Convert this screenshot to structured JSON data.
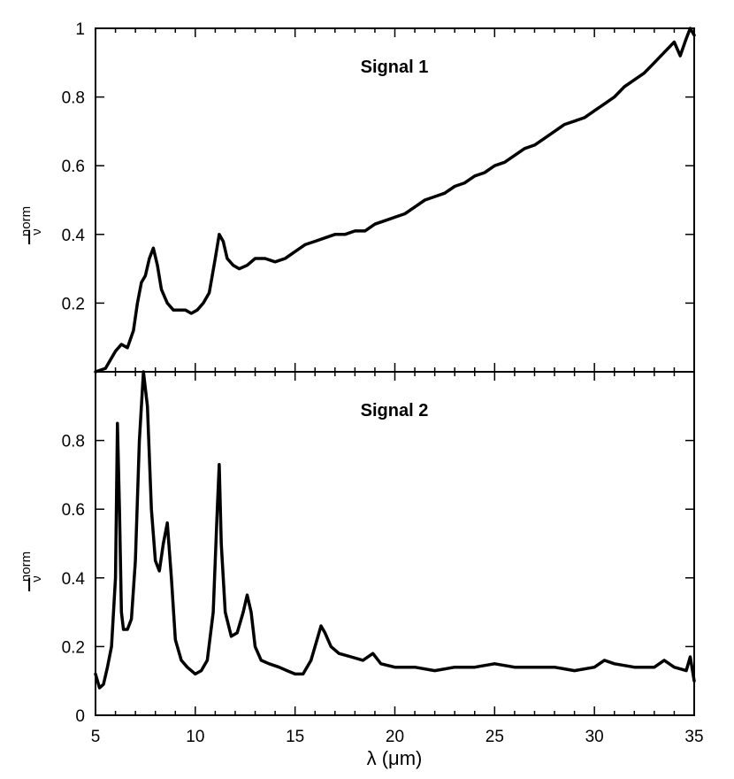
{
  "chart_data": [
    {
      "type": "line",
      "title": "Signal 1",
      "xlabel": "",
      "ylabel_main": "I",
      "ylabel_sup": "norm",
      "ylabel_sub": "ν",
      "xlim": [
        5,
        35
      ],
      "ylim": [
        0,
        1
      ],
      "yticks": [
        0.2,
        0.4,
        0.6,
        0.8,
        1
      ],
      "ytick_labels": [
        "0.2",
        "0.4",
        "0.6",
        "0.8",
        "1"
      ],
      "series": [
        {
          "x": [
            5.0,
            5.5,
            6.0,
            6.3,
            6.6,
            6.9,
            7.1,
            7.3,
            7.5,
            7.7,
            7.9,
            8.1,
            8.3,
            8.6,
            8.9,
            9.2,
            9.5,
            9.8,
            10.1,
            10.4,
            10.7,
            11.0,
            11.2,
            11.4,
            11.6,
            11.9,
            12.2,
            12.6,
            13.0,
            13.5,
            14.0,
            14.5,
            15.0,
            15.5,
            16.0,
            16.5,
            17.0,
            17.5,
            18.0,
            18.5,
            19.0,
            19.5,
            20.0,
            20.5,
            21.0,
            21.5,
            22.0,
            22.5,
            23.0,
            23.5,
            24.0,
            24.5,
            25.0,
            25.5,
            26.0,
            26.5,
            27.0,
            27.5,
            28.0,
            28.5,
            29.0,
            29.5,
            30.0,
            30.5,
            31.0,
            31.5,
            32.0,
            32.5,
            33.0,
            33.5,
            34.0,
            34.3,
            34.6,
            34.8,
            35.0
          ],
          "y": [
            0.0,
            0.01,
            0.06,
            0.08,
            0.07,
            0.12,
            0.2,
            0.26,
            0.28,
            0.33,
            0.36,
            0.31,
            0.24,
            0.2,
            0.18,
            0.18,
            0.18,
            0.17,
            0.18,
            0.2,
            0.23,
            0.33,
            0.4,
            0.38,
            0.33,
            0.31,
            0.3,
            0.31,
            0.33,
            0.33,
            0.32,
            0.33,
            0.35,
            0.37,
            0.38,
            0.39,
            0.4,
            0.4,
            0.41,
            0.41,
            0.43,
            0.44,
            0.45,
            0.46,
            0.48,
            0.5,
            0.51,
            0.52,
            0.54,
            0.55,
            0.57,
            0.58,
            0.6,
            0.61,
            0.63,
            0.65,
            0.66,
            0.68,
            0.7,
            0.72,
            0.73,
            0.74,
            0.76,
            0.78,
            0.8,
            0.83,
            0.85,
            0.87,
            0.9,
            0.93,
            0.96,
            0.92,
            0.97,
            1.0,
            0.98
          ]
        }
      ]
    },
    {
      "type": "line",
      "title": "Signal 2",
      "xlabel": "λ (μm)",
      "ylabel_main": "I",
      "ylabel_sup": "norm",
      "ylabel_sub": "ν",
      "xlim": [
        5,
        35
      ],
      "ylim": [
        0,
        1
      ],
      "yticks": [
        0,
        0.2,
        0.4,
        0.6,
        0.8
      ],
      "ytick_labels": [
        "0",
        "0.2",
        "0.4",
        "0.6",
        "0.8"
      ],
      "xticks": [
        5,
        10,
        15,
        20,
        25,
        30,
        35
      ],
      "xtick_labels": [
        "5",
        "10",
        "15",
        "20",
        "25",
        "30",
        "35"
      ],
      "series": [
        {
          "x": [
            5.0,
            5.2,
            5.4,
            5.6,
            5.8,
            6.0,
            6.1,
            6.2,
            6.3,
            6.4,
            6.6,
            6.8,
            7.0,
            7.2,
            7.4,
            7.6,
            7.8,
            8.0,
            8.2,
            8.4,
            8.6,
            8.8,
            9.0,
            9.3,
            9.6,
            10.0,
            10.3,
            10.6,
            10.9,
            11.1,
            11.2,
            11.3,
            11.5,
            11.8,
            12.1,
            12.4,
            12.6,
            12.8,
            13.0,
            13.3,
            13.7,
            14.2,
            14.6,
            15.0,
            15.4,
            15.8,
            16.1,
            16.3,
            16.5,
            16.8,
            17.2,
            17.8,
            18.4,
            18.9,
            19.3,
            20.0,
            21.0,
            22.0,
            23.0,
            24.0,
            25.0,
            26.0,
            27.0,
            28.0,
            29.0,
            30.0,
            30.5,
            31.0,
            32.0,
            33.0,
            33.5,
            34.0,
            34.6,
            34.8,
            35.0
          ],
          "y": [
            0.12,
            0.08,
            0.09,
            0.14,
            0.2,
            0.4,
            0.85,
            0.6,
            0.3,
            0.25,
            0.25,
            0.28,
            0.45,
            0.8,
            1.0,
            0.9,
            0.6,
            0.45,
            0.42,
            0.5,
            0.56,
            0.4,
            0.22,
            0.16,
            0.14,
            0.12,
            0.13,
            0.16,
            0.3,
            0.6,
            0.73,
            0.5,
            0.3,
            0.23,
            0.24,
            0.3,
            0.35,
            0.3,
            0.2,
            0.16,
            0.15,
            0.14,
            0.13,
            0.12,
            0.12,
            0.16,
            0.22,
            0.26,
            0.24,
            0.2,
            0.18,
            0.17,
            0.16,
            0.18,
            0.15,
            0.14,
            0.14,
            0.13,
            0.14,
            0.14,
            0.15,
            0.14,
            0.14,
            0.14,
            0.13,
            0.14,
            0.16,
            0.15,
            0.14,
            0.14,
            0.16,
            0.14,
            0.13,
            0.17,
            0.1
          ]
        }
      ]
    }
  ]
}
